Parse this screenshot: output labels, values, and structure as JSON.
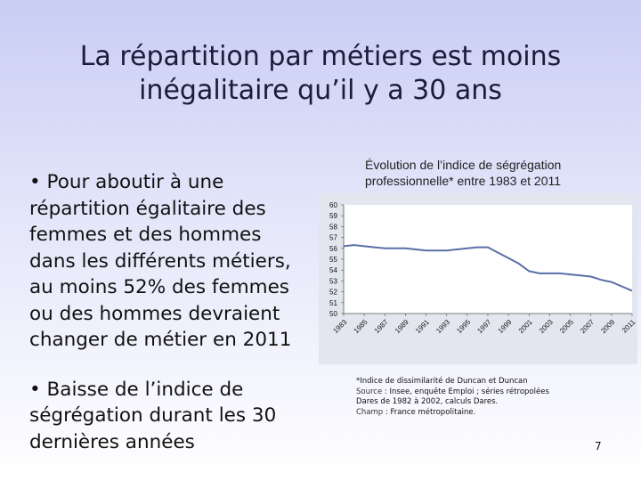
{
  "slide": {
    "title_line1": "La répartition par métiers est moins",
    "title_line2": "inégalitaire qu’il y a 30 ans",
    "bullets": [
      "• Pour aboutir à une répartition égalitaire des femmes et des hommes dans les différents métiers, au moins 52% des femmes ou des hommes devraient changer de métier en 2011",
      "• Baisse de l’indice de ségrégation durant les 30 dernières années"
    ],
    "chart_title": "Évolution de l’indice de ségrégation professionnelle* entre 1983 et 2011",
    "footnote": {
      "line1": "*Indice de dissimilarité de Duncan et Duncan",
      "source_label": "Source",
      "source_text": " : Insee, enquête Emploi ; séries rétropolées",
      "source_text2": "Dares de 1982 à 2002, calculs Dares.",
      "champ_label": "Champ",
      "champ_text": " : France métropolitaine."
    },
    "page_number": "7"
  },
  "chart_data": {
    "type": "line",
    "title": "Évolution de l’indice de ségrégation professionnelle* entre 1983 et 2011",
    "xlabel": "",
    "ylabel": "",
    "ylim": [
      50,
      60
    ],
    "yticks": [
      "50",
      "51",
      "52",
      "53",
      "54",
      "55",
      "56",
      "57",
      "58",
      "59",
      "60"
    ],
    "xtick_labels": [
      "1983",
      "1985",
      "1987",
      "1989",
      "1991",
      "1993",
      "1995",
      "1997",
      "1999",
      "2001",
      "2003",
      "2005",
      "2007",
      "2009",
      "2011"
    ],
    "line_color": "#5a6fa6",
    "grid": false,
    "legend": "none",
    "series": [
      {
        "x": [
          1983,
          1984,
          1985,
          1986,
          1987,
          1988,
          1989,
          1990,
          1991,
          1992,
          1993,
          1994,
          1995,
          1996,
          1997,
          1998,
          1999,
          2000,
          2001,
          2002,
          2003,
          2004,
          2005,
          2006,
          2007,
          2008,
          2009,
          2010,
          2011
        ],
        "values": [
          56.2,
          56.3,
          56.2,
          56.1,
          56.0,
          56.0,
          56.0,
          55.9,
          55.8,
          55.8,
          55.8,
          55.9,
          56.0,
          56.1,
          56.1,
          55.6,
          55.1,
          54.6,
          53.9,
          53.7,
          53.7,
          53.7,
          53.6,
          53.5,
          53.4,
          53.1,
          52.9,
          52.5,
          52.1
        ]
      }
    ]
  }
}
